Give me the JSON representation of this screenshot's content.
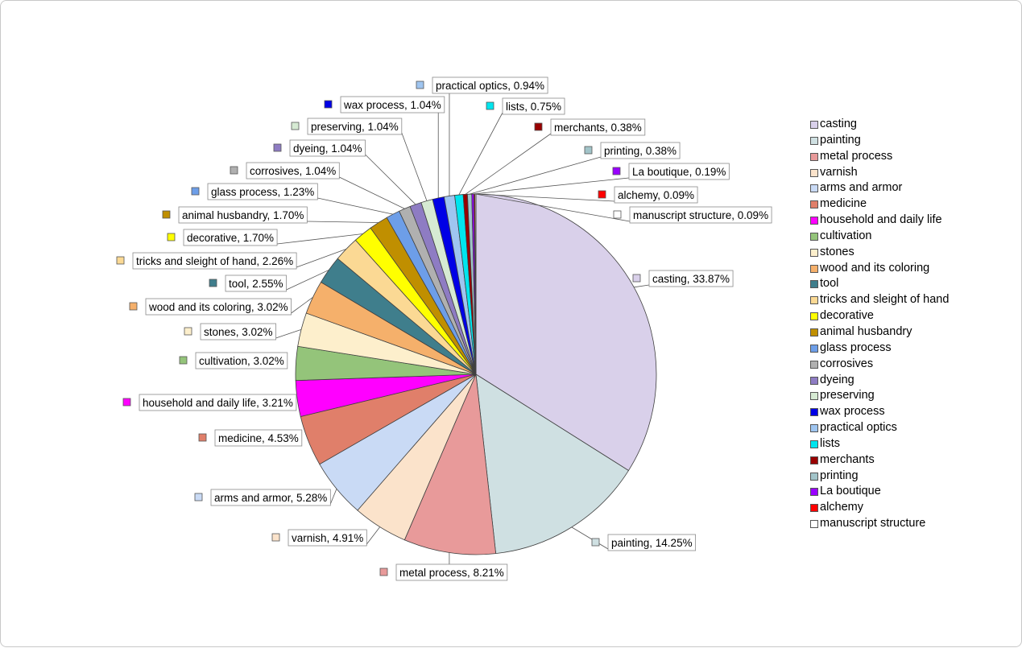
{
  "chart_data": {
    "type": "pie",
    "title": "",
    "legend_position": "right",
    "series": [
      {
        "name": "casting",
        "value": 33.87,
        "label": "casting, 33.87%",
        "color": "#d9d0ea"
      },
      {
        "name": "painting",
        "value": 14.25,
        "label": "painting, 14.25%",
        "color": "#cfe0e2"
      },
      {
        "name": "metal process",
        "value": 8.21,
        "label": "metal process, 8.21%",
        "color": "#e89a9a"
      },
      {
        "name": "varnish",
        "value": 4.91,
        "label": "varnish, 4.91%",
        "color": "#fbe3cb"
      },
      {
        "name": "arms and armor",
        "value": 5.28,
        "label": "arms and armor, 5.28%",
        "color": "#c9daf5"
      },
      {
        "name": "medicine",
        "value": 4.53,
        "label": "medicine, 4.53%",
        "color": "#e07f6a"
      },
      {
        "name": "household and daily life",
        "value": 3.21,
        "label": "household and daily life, 3.21%",
        "color": "#ff00ff"
      },
      {
        "name": "cultivation",
        "value": 3.02,
        "label": "cultivation, 3.02%",
        "color": "#94c47a"
      },
      {
        "name": "stones",
        "value": 3.02,
        "label": "stones, 3.02%",
        "color": "#fdefcc"
      },
      {
        "name": "wood and its coloring",
        "value": 3.02,
        "label": "wood and its coloring, 3.02%",
        "color": "#f5b06b"
      },
      {
        "name": "tool",
        "value": 2.55,
        "label": "tool, 2.55%",
        "color": "#3f7e8c"
      },
      {
        "name": "tricks and sleight of hand",
        "value": 2.26,
        "label": "tricks and sleight of hand, 2.26%",
        "color": "#fbd994"
      },
      {
        "name": "decorative",
        "value": 1.7,
        "label": "decorative, 1.70%",
        "color": "#ffff00"
      },
      {
        "name": "animal husbandry",
        "value": 1.7,
        "label": "animal husbandry, 1.70%",
        "color": "#c08f00"
      },
      {
        "name": "glass process",
        "value": 1.23,
        "label": "glass process, 1.23%",
        "color": "#6d9ee8"
      },
      {
        "name": "corrosives",
        "value": 1.04,
        "label": "corrosives, 1.04%",
        "color": "#b0b0b0"
      },
      {
        "name": "dyeing",
        "value": 1.04,
        "label": "dyeing, 1.04%",
        "color": "#8e7cc3"
      },
      {
        "name": "preserving",
        "value": 1.04,
        "label": "preserving, 1.04%",
        "color": "#d6ead3"
      },
      {
        "name": "wax process",
        "value": 1.04,
        "label": "wax process, 1.04%",
        "color": "#0000e6"
      },
      {
        "name": "practical optics",
        "value": 0.94,
        "label": "practical optics, 0.94%",
        "color": "#9fc5f0"
      },
      {
        "name": "lists",
        "value": 0.75,
        "label": "lists, 0.75%",
        "color": "#00e5ee"
      },
      {
        "name": "merchants",
        "value": 0.38,
        "label": "merchants, 0.38%",
        "color": "#990000"
      },
      {
        "name": "printing",
        "value": 0.38,
        "label": "printing, 0.38%",
        "color": "#a2c4c9"
      },
      {
        "name": "La boutique",
        "value": 0.19,
        "label": "La boutique, 0.19%",
        "color": "#9900ff"
      },
      {
        "name": "alchemy",
        "value": 0.09,
        "label": "alchemy, 0.09%",
        "color": "#ff0000"
      },
      {
        "name": "manuscript structure",
        "value": 0.09,
        "label": "manuscript structure, 0.09%",
        "color": "#ffffff"
      }
    ],
    "legend_order": [
      "casting",
      "painting",
      "metal process",
      "varnish",
      "arms and armor",
      "medicine",
      "household and daily life",
      "cultivation",
      "stones",
      "wood and its coloring",
      "tool",
      "tricks and sleight of hand",
      "decorative",
      "animal husbandry",
      "glass process",
      "corrosives",
      "dyeing",
      "preserving",
      "wax process",
      "practical optics",
      "lists",
      "merchants",
      "printing",
      "La boutique",
      "alchemy",
      "manuscript structure"
    ]
  }
}
